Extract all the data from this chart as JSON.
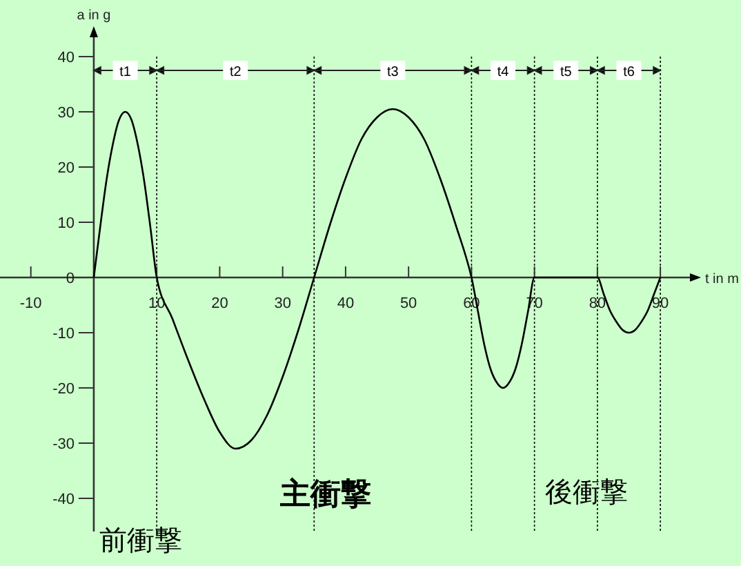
{
  "chart_data": {
    "type": "line",
    "xlabel": "t in m",
    "ylabel": "a in g",
    "xlim": [
      -14.9,
      94.7
    ],
    "ylim": [
      -46,
      44
    ],
    "xticks": [
      -10,
      10,
      20,
      30,
      40,
      50,
      60,
      70,
      80,
      90
    ],
    "yticks": [
      -40,
      -30,
      -20,
      -10,
      0,
      10,
      20,
      30,
      40
    ],
    "series": [
      {
        "color": "#000000",
        "x": [
          0,
          1,
          2,
          3,
          4,
          5,
          6,
          7,
          8,
          9,
          10,
          12.5,
          15,
          17.5,
          20,
          22.5,
          25,
          27.5,
          30,
          32.5,
          35,
          37.5,
          40,
          42.5,
          45,
          47.5,
          50,
          52.5,
          55,
          57.5,
          60,
          61,
          62,
          63,
          64,
          65,
          66,
          67,
          68,
          69,
          70,
          80,
          81,
          82,
          83,
          84,
          85,
          86,
          87,
          88,
          89,
          90
        ],
        "values": [
          0,
          9,
          17.5,
          24,
          28.5,
          30,
          28.5,
          24,
          17.5,
          9,
          0,
          -7.5,
          -15,
          -22,
          -28,
          -31,
          -29.5,
          -25,
          -18,
          -9.5,
          0,
          9.5,
          18,
          25,
          29,
          30.5,
          29,
          25,
          18,
          9.5,
          0,
          -6,
          -12,
          -16.5,
          -19,
          -20,
          -19,
          -16.5,
          -12,
          -6,
          0,
          0,
          -3,
          -6,
          -8,
          -9.5,
          -10,
          -9.5,
          -8,
          -6,
          -3,
          0
        ]
      }
    ],
    "ref_lines": [
      {
        "axis": "x",
        "value": 10,
        "line_style": "dotted"
      },
      {
        "axis": "x",
        "value": 35,
        "line_style": "dotted"
      },
      {
        "axis": "x",
        "value": 60,
        "line_style": "dotted"
      },
      {
        "axis": "x",
        "value": 70,
        "line_style": "dotted"
      },
      {
        "axis": "x",
        "value": 80,
        "line_style": "dotted"
      },
      {
        "axis": "x",
        "value": 90,
        "line_style": "dotted"
      }
    ],
    "annotations": [
      "t1",
      "t2",
      "t3",
      "t4",
      "t5",
      "t6",
      "前衝撃",
      "主衝撃",
      "後衝撃"
    ],
    "grid": false,
    "marker": "none",
    "line_style": "solid"
  }
}
